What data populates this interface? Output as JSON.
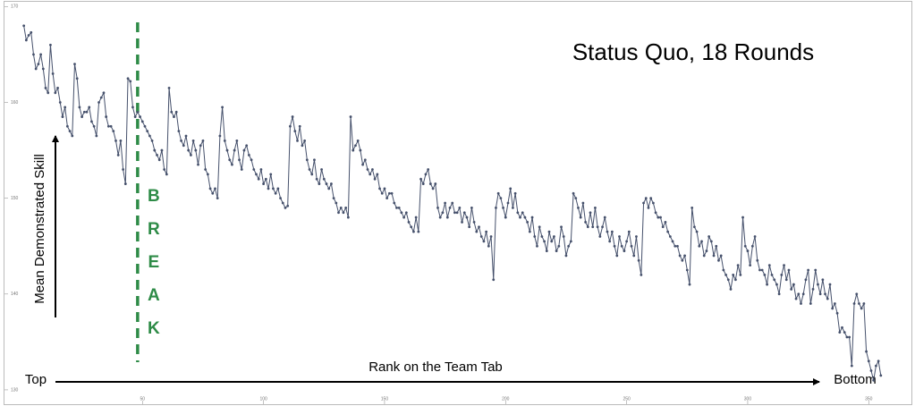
{
  "chart_data": {
    "type": "line",
    "title": "Status Quo, 18 Rounds",
    "y_label": "Mean Demonstrated Skill",
    "x_label": "Rank on the Team Tab",
    "left_label": "Top",
    "right_label": "Bottom",
    "break_letters": [
      "B",
      "R",
      "E",
      "A",
      "K"
    ],
    "break_at": 48,
    "break_color": "#2e8b47",
    "xlim": [
      -7,
      368
    ],
    "ylim": [
      128.5,
      170.5
    ],
    "xticks": [
      50,
      100,
      150,
      200,
      250,
      300,
      350
    ],
    "yticks": [
      130,
      140,
      150,
      160,
      170
    ],
    "series": [
      {
        "color": "#45506b",
        "x": [
          1,
          2,
          3,
          4,
          5,
          6,
          7,
          8,
          9,
          10,
          11,
          12,
          13,
          14,
          15,
          16,
          17,
          18,
          19,
          20,
          21,
          22,
          23,
          24,
          25,
          26,
          27,
          28,
          29,
          30,
          31,
          32,
          33,
          34,
          35,
          36,
          37,
          38,
          39,
          40,
          41,
          42,
          43,
          44,
          45,
          46,
          47,
          48,
          49,
          50,
          51,
          52,
          53,
          54,
          55,
          56,
          57,
          58,
          59,
          60,
          61,
          62,
          63,
          64,
          65,
          66,
          67,
          68,
          69,
          70,
          71,
          72,
          73,
          74,
          75,
          76,
          77,
          78,
          79,
          80,
          81,
          82,
          83,
          84,
          85,
          86,
          87,
          88,
          89,
          90,
          91,
          92,
          93,
          94,
          95,
          96,
          97,
          98,
          99,
          100,
          101,
          102,
          103,
          104,
          105,
          106,
          107,
          108,
          109,
          110,
          111,
          112,
          113,
          114,
          115,
          116,
          117,
          118,
          119,
          120,
          121,
          122,
          123,
          124,
          125,
          126,
          127,
          128,
          129,
          130,
          131,
          132,
          133,
          134,
          135,
          136,
          137,
          138,
          139,
          140,
          141,
          142,
          143,
          144,
          145,
          146,
          147,
          148,
          149,
          150,
          151,
          152,
          153,
          154,
          155,
          156,
          157,
          158,
          159,
          160,
          161,
          162,
          163,
          164,
          165,
          166,
          167,
          168,
          169,
          170,
          171,
          172,
          173,
          174,
          175,
          176,
          177,
          178,
          179,
          180,
          181,
          182,
          183,
          184,
          185,
          186,
          187,
          188,
          189,
          190,
          191,
          192,
          193,
          194,
          195,
          196,
          197,
          198,
          199,
          200,
          201,
          202,
          203,
          204,
          205,
          206,
          207,
          208,
          209,
          210,
          211,
          212,
          213,
          214,
          215,
          216,
          217,
          218,
          219,
          220,
          221,
          222,
          223,
          224,
          225,
          226,
          227,
          228,
          229,
          230,
          231,
          232,
          233,
          234,
          235,
          236,
          237,
          238,
          239,
          240,
          241,
          242,
          243,
          244,
          245,
          246,
          247,
          248,
          249,
          250,
          251,
          252,
          253,
          254,
          255,
          256,
          257,
          258,
          259,
          260,
          261,
          262,
          263,
          264,
          265,
          266,
          267,
          268,
          269,
          270,
          271,
          272,
          273,
          274,
          275,
          276,
          277,
          278,
          279,
          280,
          281,
          282,
          283,
          284,
          285,
          286,
          287,
          288,
          289,
          290,
          291,
          292,
          293,
          294,
          295,
          296,
          297,
          298,
          299,
          300,
          301,
          302,
          303,
          304,
          305,
          306,
          307,
          308,
          309,
          310,
          311,
          312,
          313,
          314,
          315,
          316,
          317,
          318,
          319,
          320,
          321,
          322,
          323,
          324,
          325,
          326,
          327,
          328,
          329,
          330,
          331,
          332,
          333,
          334,
          335,
          336,
          337,
          338,
          339,
          340,
          341,
          342,
          343,
          344,
          345,
          346,
          347,
          348,
          349,
          350,
          351,
          352,
          353,
          354,
          355
        ],
        "values": [
          168,
          166.5,
          167,
          167.3,
          165,
          163.5,
          164,
          165,
          163.5,
          161.5,
          161,
          166,
          163,
          161,
          161.5,
          160,
          158.5,
          159.5,
          157.5,
          157,
          156.5,
          164,
          162.5,
          159.5,
          158.5,
          159,
          159,
          159.5,
          158,
          157.5,
          156.5,
          160,
          160.5,
          161,
          158.5,
          157.5,
          157.5,
          157,
          156,
          154.5,
          156,
          153,
          151.5,
          162.5,
          162.2,
          159.5,
          158.5,
          159,
          158.5,
          158,
          157.5,
          157,
          156.5,
          156,
          155,
          154.5,
          154,
          155,
          153,
          152.5,
          161.5,
          159,
          158.5,
          159,
          157,
          156,
          155.5,
          156.5,
          155,
          154.5,
          156,
          155,
          153.5,
          155.5,
          156,
          153,
          152.5,
          151,
          150.5,
          151,
          150,
          156.5,
          159.5,
          156,
          155,
          154,
          153.5,
          155,
          156,
          154,
          153,
          155,
          155.5,
          154.5,
          154,
          153,
          152.5,
          152,
          153,
          151.5,
          152,
          151,
          152.5,
          151,
          150.5,
          151,
          150,
          149.5,
          149,
          149.2,
          157.5,
          158.5,
          157,
          156,
          157.5,
          155.5,
          156,
          154,
          153,
          152.5,
          154,
          152,
          151.5,
          153,
          152,
          151.5,
          151,
          151.5,
          150,
          149.5,
          148.5,
          149,
          148.5,
          149,
          148,
          158.5,
          155,
          155.5,
          156,
          155,
          153.5,
          154,
          153,
          152.5,
          153,
          152,
          152.5,
          151,
          150.5,
          151,
          150,
          150.5,
          150.5,
          149.5,
          149,
          149,
          148.5,
          148,
          148.5,
          147.5,
          147,
          146.5,
          148,
          146.5,
          152,
          151.5,
          152.5,
          153,
          151.5,
          151,
          151.5,
          149,
          148,
          148.5,
          149.5,
          148,
          149,
          149.5,
          148.5,
          148.5,
          149,
          147.5,
          148.5,
          148,
          147,
          149,
          147.5,
          146.5,
          147,
          146,
          145.5,
          146.5,
          145,
          146,
          141.5,
          149,
          150.5,
          150,
          149,
          148,
          149.5,
          151,
          149,
          150.5,
          148.5,
          148,
          148.5,
          148,
          147.5,
          146.5,
          148,
          146,
          145,
          147,
          146,
          145.5,
          144.5,
          146.5,
          145.5,
          146,
          144.5,
          145,
          147,
          146,
          144,
          145,
          145.5,
          150.5,
          150,
          149,
          148,
          149.5,
          147.5,
          147,
          148.5,
          147,
          149,
          147,
          146,
          147,
          148,
          146.5,
          145.5,
          146.5,
          145,
          144,
          146,
          145,
          144.5,
          145.5,
          146.5,
          145,
          144,
          146,
          143.5,
          142,
          149.5,
          150,
          149,
          150,
          149.5,
          148.5,
          148,
          148,
          147,
          147.5,
          146.5,
          146,
          145.5,
          145,
          145,
          144,
          143.5,
          144,
          142.5,
          141,
          149,
          147,
          146.5,
          145,
          145.5,
          144,
          144.5,
          146,
          145.5,
          144,
          145,
          143.5,
          144,
          142.5,
          142,
          141.5,
          140.5,
          142,
          141.5,
          143,
          142,
          148,
          145,
          144.5,
          143,
          145,
          146,
          143.5,
          142.5,
          142.5,
          142,
          141,
          143,
          142,
          141.5,
          141,
          140,
          142,
          143,
          141.5,
          142.5,
          140.5,
          141,
          139.5,
          140,
          139,
          140,
          141.5,
          142.5,
          139,
          140.5,
          142.5,
          141,
          140,
          141.5,
          140,
          139.5,
          141,
          138.5,
          139,
          138,
          136,
          136.5,
          136,
          135.5,
          135.5,
          132.5,
          139,
          140,
          139,
          138.5,
          139,
          134,
          133,
          132,
          131,
          132.5,
          133,
          131.5
        ]
      }
    ]
  }
}
